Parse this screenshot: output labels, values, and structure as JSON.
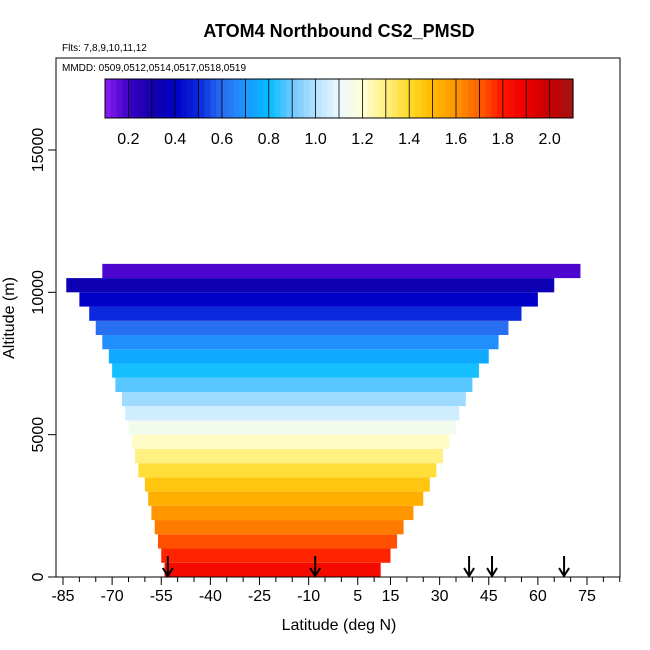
{
  "chart_data": {
    "type": "heatmap",
    "title": "ATOM4 Northbound CS2_PMSD",
    "subtitle_flights": "Flts: 7,8,9,10,11,12",
    "subtitle_dates": "MMDD: 0509,0512,0514,0517,0518,0519",
    "xlabel": "Latitude (deg N)",
    "ylabel": "Altitude (m)",
    "xlim": [
      -88,
      88
    ],
    "ylim": [
      0,
      18000
    ],
    "x_ticks": [
      -85,
      -70,
      -55,
      -40,
      -25,
      -10,
      5,
      15,
      30,
      45,
      60,
      75
    ],
    "x_minor_ticks": [
      -80,
      -75,
      -65,
      -60,
      -50,
      -45,
      -35,
      -30,
      -20,
      -15,
      -5,
      0,
      10,
      20,
      25,
      35,
      40,
      50,
      55,
      65,
      70,
      80,
      85
    ],
    "y_ticks": [
      0,
      5000,
      10000,
      15000
    ],
    "colorbar": {
      "range": [
        0.1,
        2.1
      ],
      "ticks": [
        0.2,
        0.4,
        0.6,
        0.8,
        1.0,
        1.2,
        1.4,
        1.6,
        1.8,
        2.0
      ],
      "tick_labels": [
        "0.2",
        "0.4",
        "0.6",
        "0.8",
        "1.0",
        "1.2",
        "1.4",
        "1.6",
        "1.8",
        "2.0"
      ]
    },
    "layers": [
      {
        "alt_bottom": 0,
        "alt_top": 500,
        "lat_min": -54,
        "lat_max": 12,
        "value": 1.85
      },
      {
        "alt_bottom": 500,
        "alt_top": 1000,
        "lat_min": -55,
        "lat_max": 15,
        "value": 1.78
      },
      {
        "alt_bottom": 1000,
        "alt_top": 1500,
        "lat_min": -56,
        "lat_max": 17,
        "value": 1.72
      },
      {
        "alt_bottom": 1500,
        "alt_top": 2000,
        "lat_min": -57,
        "lat_max": 19,
        "value": 1.65
      },
      {
        "alt_bottom": 2000,
        "alt_top": 2500,
        "lat_min": -58,
        "lat_max": 22,
        "value": 1.6
      },
      {
        "alt_bottom": 2500,
        "alt_top": 3000,
        "lat_min": -59,
        "lat_max": 25,
        "value": 1.53
      },
      {
        "alt_bottom": 3000,
        "alt_top": 3500,
        "lat_min": -60,
        "lat_max": 27,
        "value": 1.46
      },
      {
        "alt_bottom": 3500,
        "alt_top": 4000,
        "lat_min": -62,
        "lat_max": 29,
        "value": 1.38
      },
      {
        "alt_bottom": 4000,
        "alt_top": 4500,
        "lat_min": -63,
        "lat_max": 31,
        "value": 1.3
      },
      {
        "alt_bottom": 4500,
        "alt_top": 5000,
        "lat_min": -64,
        "lat_max": 33,
        "value": 1.22
      },
      {
        "alt_bottom": 5000,
        "alt_top": 5500,
        "lat_min": -65,
        "lat_max": 35,
        "value": 1.14
      },
      {
        "alt_bottom": 5500,
        "alt_top": 6000,
        "lat_min": -66,
        "lat_max": 36,
        "value": 1.05
      },
      {
        "alt_bottom": 6000,
        "alt_top": 6500,
        "lat_min": -67,
        "lat_max": 38,
        "value": 0.97
      },
      {
        "alt_bottom": 6500,
        "alt_top": 7000,
        "lat_min": -69,
        "lat_max": 40,
        "value": 0.88
      },
      {
        "alt_bottom": 7000,
        "alt_top": 7500,
        "lat_min": -70,
        "lat_max": 42,
        "value": 0.82
      },
      {
        "alt_bottom": 7500,
        "alt_top": 8000,
        "lat_min": -71,
        "lat_max": 45,
        "value": 0.75
      },
      {
        "alt_bottom": 8000,
        "alt_top": 8500,
        "lat_min": -73,
        "lat_max": 48,
        "value": 0.68
      },
      {
        "alt_bottom": 8500,
        "alt_top": 9000,
        "lat_min": -75,
        "lat_max": 51,
        "value": 0.6
      },
      {
        "alt_bottom": 9000,
        "alt_top": 9500,
        "lat_min": -77,
        "lat_max": 55,
        "value": 0.5
      },
      {
        "alt_bottom": 9500,
        "alt_top": 10000,
        "lat_min": -80,
        "lat_max": 60,
        "value": 0.4
      },
      {
        "alt_bottom": 10000,
        "alt_top": 10500,
        "lat_min": -84,
        "lat_max": 65,
        "value": 0.33
      },
      {
        "alt_bottom": 10500,
        "alt_top": 11000,
        "lat_min": -73,
        "lat_max": 73,
        "value": 0.18
      }
    ],
    "arrows_latitude": [
      -53,
      -8,
      39,
      46,
      68
    ]
  }
}
